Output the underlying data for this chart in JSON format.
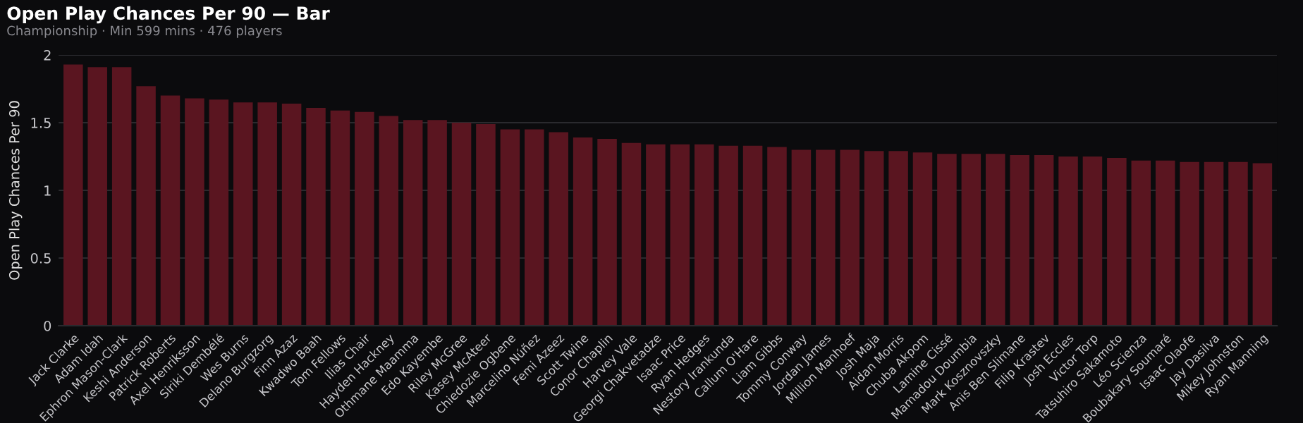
{
  "chart_data": {
    "type": "bar",
    "title": "Open Play Chances Per 90 — Bar",
    "subtitle": "Championship · Min 599 mins · 476 players",
    "ylabel": "Open Play Chances Per 90",
    "categories": [
      "Jack Clarke",
      "Adam Idah",
      "Ephron Mason-Clark",
      "Keshi Anderson",
      "Patrick Roberts",
      "Axel Henriksson",
      "Siriki Dembélé",
      "Wes Burns",
      "Delano Burgzorg",
      "Finn Azaz",
      "Kwadwo Baah",
      "Tom Fellows",
      "Ilias Chair",
      "Hayden Hackney",
      "Othmane Maamma",
      "Edo Kayembe",
      "Riley McGree",
      "Kasey McAteer",
      "Chiedozie Ogbene",
      "Marcelino Núñez",
      "Femi Azeez",
      "Scott Twine",
      "Conor Chaplin",
      "Harvey Vale",
      "Georgi Chakvetadze",
      "Isaac Price",
      "Ryan Hedges",
      "Nestory Irankunda",
      "Callum O'Hare",
      "Liam Gibbs",
      "Tommy Conway",
      "Jordan James",
      "Million Manhoef",
      "Josh Maja",
      "Aidan Morris",
      "Chuba Akpom",
      "Lamine Cissé",
      "Mamadou Doumbia",
      "Mark Kosznovszky",
      "Anis Ben Slimane",
      "Filip Krastev",
      "Josh Eccles",
      "Victor Torp",
      "Tatsuhiro Sakamoto",
      "Léo Scienza",
      "Boubakary Soumaré",
      "Isaac Olaofe",
      "Jay Dasilva",
      "Mikey Johnston",
      "Ryan Manning"
    ],
    "values": [
      1.93,
      1.91,
      1.91,
      1.77,
      1.7,
      1.68,
      1.67,
      1.65,
      1.65,
      1.64,
      1.61,
      1.59,
      1.58,
      1.55,
      1.52,
      1.52,
      1.5,
      1.49,
      1.45,
      1.45,
      1.43,
      1.39,
      1.38,
      1.35,
      1.34,
      1.34,
      1.34,
      1.33,
      1.33,
      1.32,
      1.3,
      1.3,
      1.3,
      1.29,
      1.29,
      1.28,
      1.27,
      1.27,
      1.27,
      1.26,
      1.26,
      1.25,
      1.25,
      1.24,
      1.22,
      1.22,
      1.21,
      1.21,
      1.21,
      1.2
    ],
    "color": "#5a1520",
    "ylim": [
      0,
      2
    ],
    "yticks": [
      0,
      0.5,
      1,
      1.5,
      2
    ],
    "grid": "y"
  }
}
